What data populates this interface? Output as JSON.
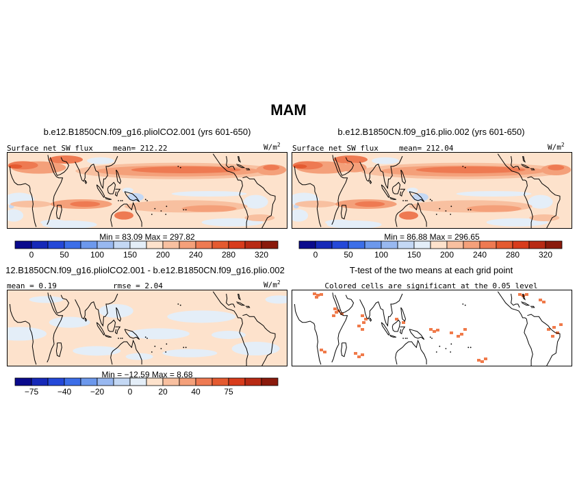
{
  "title": "MAM",
  "panels": {
    "p1": {
      "title": "b.e12.B1850CN.f09_g16.pliolCO2.001 (yrs 601-650)",
      "variable": "Surface net SW flux",
      "stat": "mean= 212.22",
      "units": "W/m",
      "units_sup": "2",
      "minmax": "Min =   83.09  Max = 297.82"
    },
    "p2": {
      "title": "b.e12.B1850CN.f09_g16.plio.002 (yrs 601-650)",
      "variable": "Surface net SW flux",
      "stat": "mean= 212.04",
      "units": "W/m",
      "units_sup": "2",
      "minmax": "Min =   86.88  Max = 296.65"
    },
    "p3": {
      "title": "12.B1850CN.f09_g16.pliolCO2.001 - b.e12.B1850CN.f09_g16.plio.002",
      "stat": "mean =   0.19",
      "rmse": "rmse =   2.04",
      "units": "W/m",
      "units_sup": "2",
      "minmax": "Min = −12.59  Max =    8.68"
    },
    "p4": {
      "title": "T-test of the two means at each grid point",
      "subtitle": "Colored cells are significant at the 0.05 level"
    }
  },
  "colorbars": {
    "abs": {
      "colors": [
        "#0a0a8c",
        "#1629b8",
        "#2448d8",
        "#3c6ee8",
        "#6c98ec",
        "#98b8f0",
        "#c4d8f4",
        "#e4eef8",
        "#fde2cc",
        "#f8c0a0",
        "#f4a07a",
        "#ee7a52",
        "#e45a30",
        "#d83c1c",
        "#b82a14",
        "#8a1a0c"
      ],
      "ticks": [
        "0",
        "50",
        "100",
        "150",
        "200",
        "240",
        "280",
        "320"
      ]
    },
    "diff": {
      "colors": [
        "#0a0a8c",
        "#1629b8",
        "#2448d8",
        "#3c6ee8",
        "#6c98ec",
        "#98b8f0",
        "#c4d8f4",
        "#e4eef8",
        "#fde2cc",
        "#f8c0a0",
        "#f4a07a",
        "#ee7a52",
        "#e45a30",
        "#d83c1c",
        "#b82a14",
        "#8a1a0c"
      ],
      "ticks": [
        "−75",
        "−40",
        "−20",
        "0",
        "20",
        "40",
        "75"
      ]
    }
  }
}
